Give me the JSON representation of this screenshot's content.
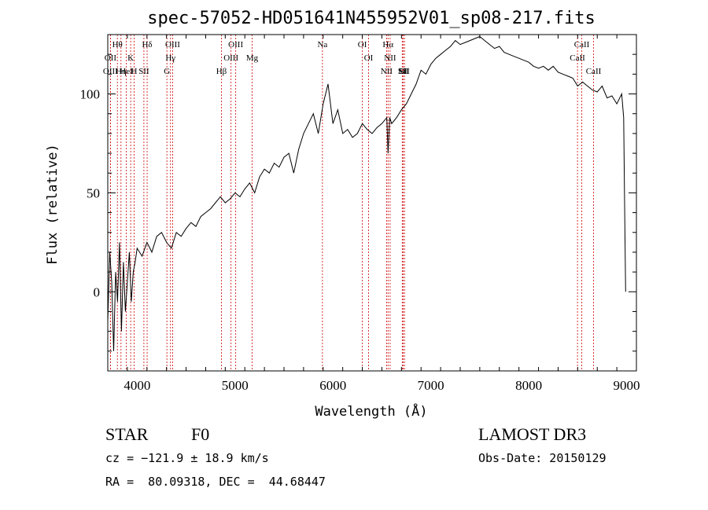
{
  "chart_data": {
    "type": "line",
    "title": "spec-57052-HD051641N455952V01_sp08-217.fits",
    "xlabel": "Wavelength (Å)",
    "ylabel": "Flux (relative)",
    "xlim": [
      3700,
      9100
    ],
    "ylim": [
      -40,
      130
    ],
    "xticks": [
      4000,
      5000,
      6000,
      7000,
      8000,
      9000
    ],
    "yticks": [
      0,
      50,
      100
    ],
    "series": [
      {
        "name": "flux",
        "x": [
          3700,
          3720,
          3740,
          3760,
          3780,
          3800,
          3820,
          3840,
          3860,
          3880,
          3900,
          3920,
          3940,
          3960,
          3980,
          4000,
          4050,
          4100,
          4150,
          4200,
          4250,
          4300,
          4350,
          4400,
          4450,
          4500,
          4550,
          4600,
          4650,
          4700,
          4750,
          4800,
          4850,
          4900,
          4950,
          5000,
          5050,
          5100,
          5150,
          5200,
          5250,
          5300,
          5350,
          5400,
          5450,
          5500,
          5550,
          5600,
          5650,
          5700,
          5750,
          5800,
          5850,
          5900,
          5950,
          6000,
          6050,
          6100,
          6150,
          6200,
          6250,
          6300,
          6350,
          6400,
          6450,
          6500,
          6550,
          6563,
          6580,
          6600,
          6650,
          6700,
          6750,
          6800,
          6850,
          6900,
          6950,
          7000,
          7050,
          7100,
          7150,
          7200,
          7250,
          7300,
          7350,
          7400,
          7450,
          7500,
          7550,
          7600,
          7650,
          7700,
          7750,
          7800,
          7850,
          7900,
          7950,
          8000,
          8050,
          8100,
          8150,
          8200,
          8250,
          8300,
          8350,
          8400,
          8450,
          8500,
          8550,
          8600,
          8650,
          8700,
          8750,
          8800,
          8850,
          8900,
          8950,
          8970,
          8980,
          8990
        ],
        "values": [
          -15,
          20,
          5,
          -30,
          10,
          -5,
          25,
          -20,
          15,
          -10,
          5,
          20,
          -5,
          10,
          15,
          22,
          18,
          25,
          20,
          28,
          30,
          25,
          22,
          30,
          28,
          32,
          35,
          33,
          38,
          40,
          42,
          45,
          48,
          45,
          47,
          50,
          48,
          52,
          55,
          50,
          58,
          62,
          60,
          65,
          63,
          68,
          70,
          60,
          72,
          80,
          85,
          90,
          80,
          95,
          105,
          85,
          92,
          80,
          82,
          78,
          80,
          85,
          82,
          80,
          83,
          85,
          88,
          70,
          88,
          85,
          88,
          92,
          95,
          100,
          105,
          112,
          110,
          115,
          118,
          120,
          122,
          124,
          127,
          125,
          126,
          127,
          128,
          129,
          127,
          125,
          123,
          124,
          121,
          120,
          119,
          118,
          117,
          116,
          114,
          113,
          114,
          112,
          114,
          111,
          110,
          109,
          108,
          104,
          106,
          104,
          102,
          101,
          104,
          98,
          99,
          95,
          100,
          88,
          40,
          0
        ]
      }
    ],
    "spectral_lines": [
      {
        "label": "Hθ",
        "wavelength": 3798
      },
      {
        "label": "OII",
        "wavelength": 3727
      },
      {
        "label": "OIII",
        "wavelength": 3727
      },
      {
        "label": "K",
        "wavelength": 3934
      },
      {
        "label": "HeI",
        "wavelength": 3889
      },
      {
        "label": "Hη",
        "wavelength": 3835
      },
      {
        "label": "H",
        "wavelength": 3969
      },
      {
        "label": "Hδ",
        "wavelength": 4102
      },
      {
        "label": "SII",
        "wavelength": 4069
      },
      {
        "label": "OIII",
        "wavelength": 4363
      },
      {
        "label": "Hγ",
        "wavelength": 4341
      },
      {
        "label": "G",
        "wavelength": 4304
      },
      {
        "label": "OIII",
        "wavelength": 5007
      },
      {
        "label": "OIII",
        "wavelength": 4959
      },
      {
        "label": "Hβ",
        "wavelength": 4861
      },
      {
        "label": "Mg",
        "wavelength": 5175
      },
      {
        "label": "Na",
        "wavelength": 5893
      },
      {
        "label": "OI",
        "wavelength": 6300
      },
      {
        "label": "OI",
        "wavelength": 6364
      },
      {
        "label": "Hα",
        "wavelength": 6563
      },
      {
        "label": "NII",
        "wavelength": 6548
      },
      {
        "label": "NII",
        "wavelength": 6584
      },
      {
        "label": "SII",
        "wavelength": 6717
      },
      {
        "label": "Li",
        "wavelength": 6708
      },
      {
        "label": "SII",
        "wavelength": 6731
      },
      {
        "label": "CaII",
        "wavelength": 8542
      },
      {
        "label": "CaII",
        "wavelength": 8498
      },
      {
        "label": "CaII",
        "wavelength": 8662
      }
    ]
  },
  "info": {
    "class": "STAR",
    "subclass": "F0",
    "survey": "LAMOST DR3",
    "cz": "cz = −121.9 ± 18.9 km/s",
    "obs_date": "Obs-Date: 20150129",
    "coords": "RA =  80.09318, DEC =  44.68447"
  },
  "colors": {
    "axis": "#000000",
    "spectrum": "#000000",
    "line_marker": "#cc0000"
  }
}
